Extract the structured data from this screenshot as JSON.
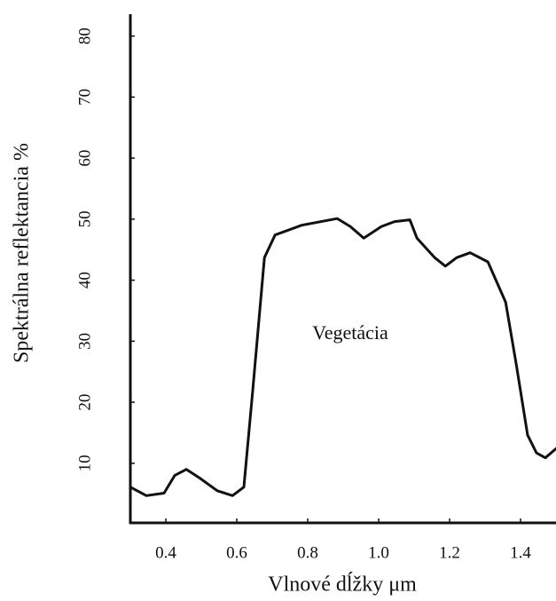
{
  "chart_data": {
    "type": "line",
    "xlabel": "Vlnové dĺžky μm",
    "ylabel": "Spektrálna reflektancia %",
    "annotation": "Vegetácia",
    "color": "#111111",
    "xlim": [
      0.3,
      1.5
    ],
    "ylim": [
      0,
      83
    ],
    "xticks": [
      0.4,
      0.6,
      0.8,
      {
        "value": 1,
        "label": "1.0"
      },
      1.2,
      1.4
    ],
    "yticks": [
      10,
      20,
      30,
      40,
      50,
      60,
      70,
      80
    ],
    "x": [
      0.3,
      0.345,
      0.395,
      0.425,
      0.458,
      0.495,
      0.545,
      0.588,
      0.62,
      0.645,
      0.678,
      0.708,
      0.783,
      0.883,
      0.92,
      0.958,
      1.008,
      1.045,
      1.088,
      1.108,
      1.158,
      1.188,
      1.22,
      1.258,
      1.308,
      1.358,
      1.388,
      1.42,
      1.445,
      1.47,
      1.5
    ],
    "series": [
      {
        "values": [
          6.1,
          4.7,
          5.1,
          8.0,
          9.0,
          7.6,
          5.5,
          4.7,
          6.1,
          21.9,
          43.7,
          47.4,
          49.0,
          50.1,
          48.8,
          46.9,
          48.8,
          49.6,
          49.9,
          46.9,
          43.7,
          42.3,
          43.7,
          44.5,
          43.0,
          36.4,
          26.2,
          14.6,
          11.7,
          10.9,
          12.4
        ]
      }
    ]
  }
}
